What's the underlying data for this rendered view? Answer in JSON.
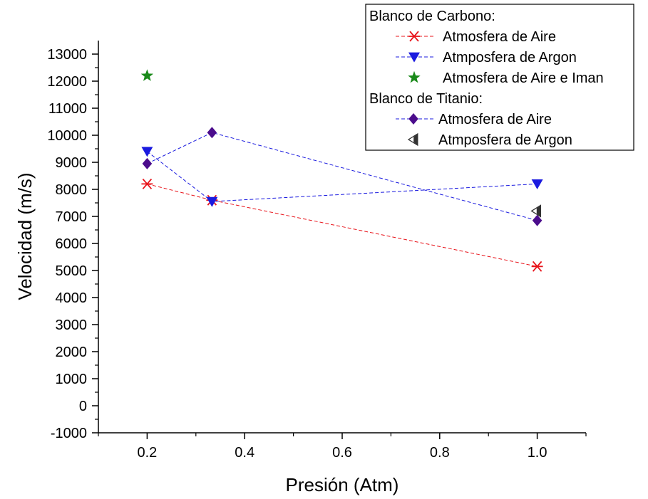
{
  "chart_data": {
    "type": "line",
    "xlabel": "Presión (Atm)",
    "ylabel": "Velocidad (m/s)",
    "xlim": [
      0.1,
      1.1
    ],
    "ylim": [
      -1000,
      13500
    ],
    "x_ticks": [
      0.2,
      0.4,
      0.6,
      0.8,
      1.0
    ],
    "x_tick_labels": [
      "0.2",
      "0.4",
      "0.6",
      "0.8",
      "1.0"
    ],
    "y_ticks": [
      -1000,
      0,
      1000,
      2000,
      3000,
      4000,
      5000,
      6000,
      7000,
      8000,
      9000,
      10000,
      11000,
      12000,
      13000
    ],
    "y_tick_labels": [
      "-1000",
      "0",
      "1000",
      "2000",
      "3000",
      "4000",
      "5000",
      "6000",
      "7000",
      "8000",
      "9000",
      "10000",
      "11000",
      "12000",
      "13000"
    ],
    "grid": false,
    "legend_position": "top-right",
    "legend_groups": [
      {
        "title": "Blanco de Carbono:",
        "series": [
          {
            "name": "Atmosfera de Aire",
            "marker": "asterisk",
            "color": "#e8141b",
            "line": true,
            "x": [
              0.2,
              0.333,
              1.0
            ],
            "y": [
              8200,
              7600,
              5150
            ]
          },
          {
            "name": "Atmposfera de Argon",
            "marker": "triangle-down",
            "color": "#1a1adf",
            "line": true,
            "x": [
              0.2,
              0.333,
              1.0
            ],
            "y": [
              9400,
              7550,
              8200
            ]
          },
          {
            "name": "Atmosfera de Aire e Iman",
            "marker": "star",
            "color": "#1a8a1a",
            "line": false,
            "x": [
              0.2
            ],
            "y": [
              12200
            ]
          }
        ]
      },
      {
        "title": "Blanco de Titanio:",
        "series": [
          {
            "name": "Atmosfera de Aire",
            "marker": "diamond",
            "color": "#4b0c8c",
            "line_color": "#1a1adf",
            "line": true,
            "x": [
              0.2,
              0.333,
              1.0
            ],
            "y": [
              8950,
              10100,
              6850
            ]
          },
          {
            "name": "Atmposfera de Argon",
            "marker": "half-triangle-left",
            "color": "#333333",
            "line": false,
            "x": [
              1.0
            ],
            "y": [
              7200
            ]
          }
        ]
      }
    ]
  }
}
